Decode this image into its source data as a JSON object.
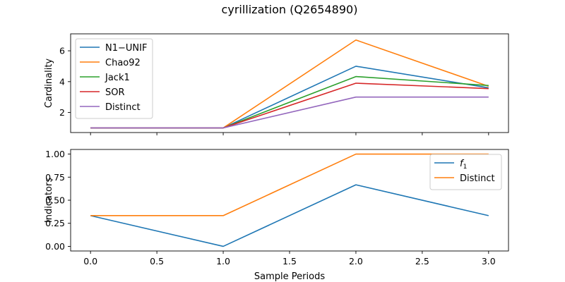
{
  "figure": {
    "title": "cyrillization (Q2654890)",
    "xlabel": "Sample Periods"
  },
  "chart_data": [
    {
      "type": "line",
      "ylabel": "Cardinality",
      "x": [
        0,
        1,
        2,
        3
      ],
      "xlim": [
        -0.15,
        3.15
      ],
      "ylim": [
        0.7,
        7.1
      ],
      "yticks": [
        2,
        4,
        6
      ],
      "xticks": [
        0.0,
        0.5,
        1.0,
        1.5,
        2.0,
        2.5,
        3.0
      ],
      "show_xtick_labels": false,
      "legend_position": "upper-left",
      "series": [
        {
          "name": "N1−UNIF",
          "color": "#1f77b4",
          "values": [
            1,
            1,
            5.0,
            3.6
          ]
        },
        {
          "name": "Chao92",
          "color": "#ff7f0e",
          "values": [
            1,
            1,
            6.7,
            3.7
          ]
        },
        {
          "name": "Jack1",
          "color": "#2ca02c",
          "values": [
            1,
            1,
            4.33,
            3.75
          ]
        },
        {
          "name": "SOR",
          "color": "#d62728",
          "values": [
            1,
            1,
            3.9,
            3.55
          ]
        },
        {
          "name": "Distinct",
          "color": "#9467bd",
          "values": [
            1,
            1,
            3.0,
            3.0
          ]
        }
      ]
    },
    {
      "type": "line",
      "ylabel": "Indicators",
      "x": [
        0,
        1,
        2,
        3
      ],
      "xlim": [
        -0.15,
        3.15
      ],
      "ylim": [
        -0.05,
        1.05
      ],
      "yticks": [
        0.0,
        0.25,
        0.5,
        0.75,
        1.0
      ],
      "ytick_labels": [
        "0.00",
        "0.25",
        "0.50",
        "0.75",
        "1.00"
      ],
      "xticks": [
        0.0,
        0.5,
        1.0,
        1.5,
        2.0,
        2.5,
        3.0
      ],
      "xtick_labels": [
        "0.0",
        "0.5",
        "1.0",
        "1.5",
        "2.0",
        "2.5",
        "3.0"
      ],
      "show_xtick_labels": true,
      "legend_position": "upper-right",
      "series": [
        {
          "name": "f",
          "subscript": "1",
          "italic": true,
          "color": "#1f77b4",
          "values": [
            0.333,
            0.0,
            0.667,
            0.333
          ]
        },
        {
          "name": "Distinct",
          "color": "#ff7f0e",
          "values": [
            0.333,
            0.333,
            1.0,
            1.0
          ]
        }
      ]
    }
  ]
}
